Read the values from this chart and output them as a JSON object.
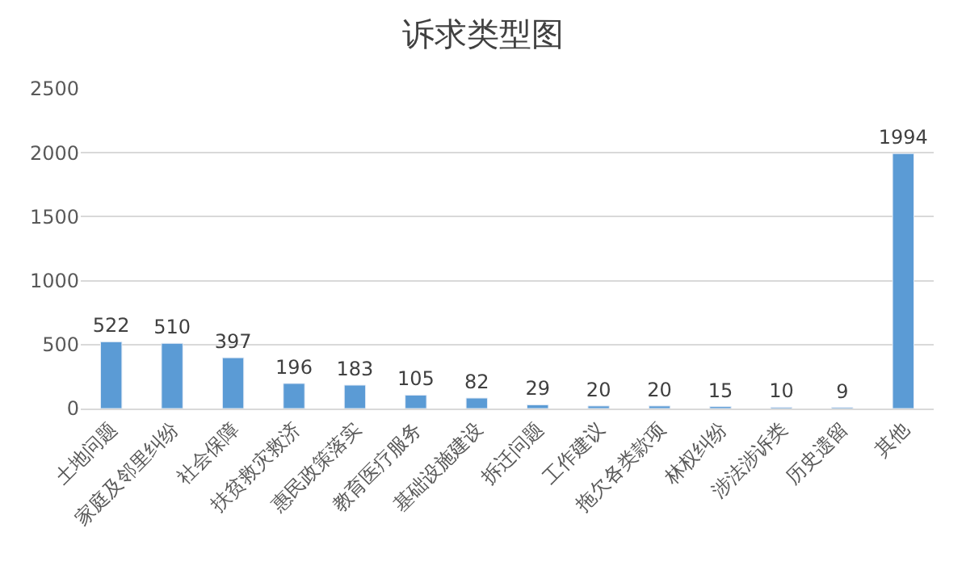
{
  "chart_data": {
    "type": "bar",
    "title": "诉求类型图",
    "categories": [
      "土地问题",
      "家庭及邻里纠纷",
      "社会保障",
      "扶贫救灾救济",
      "惠民政策落实",
      "教育医疗服务",
      "基础设施建设",
      "拆迁问题",
      "工作建议",
      "拖欠各类款项",
      "林权纠纷",
      "涉法涉诉类",
      "历史遗留",
      "其他"
    ],
    "values": [
      522,
      510,
      397,
      196,
      183,
      105,
      82,
      29,
      20,
      20,
      15,
      10,
      9,
      1994
    ],
    "color": "#5b9bd5",
    "data_labels": true,
    "ylim": [
      0,
      2500
    ],
    "yticks": [
      0,
      500,
      1000,
      1500,
      2000,
      2500
    ],
    "grid": "y",
    "legend": false
  }
}
